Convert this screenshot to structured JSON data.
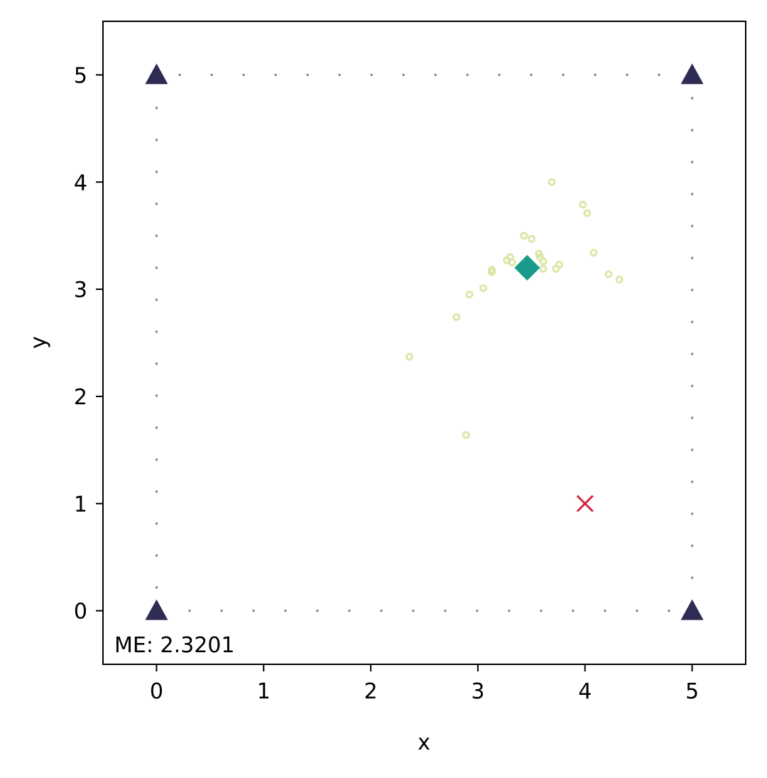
{
  "chart_data": {
    "type": "scatter",
    "xlabel": "x",
    "ylabel": "y",
    "xlim": [
      -0.5,
      5.5
    ],
    "ylim": [
      -0.5,
      5.5
    ],
    "x_ticks": [
      "0",
      "1",
      "2",
      "3",
      "4",
      "5"
    ],
    "y_ticks": [
      "0",
      "1",
      "2",
      "3",
      "4",
      "5"
    ],
    "grid": false,
    "annotation": "ME: 2.3201",
    "colors": {
      "anchor": "#2e2b55",
      "estimate": "#1a9a8a",
      "true_position": "#d4243e",
      "samples": "#d6e6a0",
      "boundary": "#808080"
    },
    "boundary": [
      [
        0,
        0
      ],
      [
        5,
        0
      ],
      [
        5,
        5
      ],
      [
        0,
        5
      ]
    ],
    "anchors": [
      {
        "x": 0,
        "y": 5
      },
      {
        "x": 5,
        "y": 5
      },
      {
        "x": 0,
        "y": 0
      },
      {
        "x": 5,
        "y": 0
      }
    ],
    "estimate": {
      "x": 3.46,
      "y": 3.2
    },
    "true_position": {
      "x": 4.0,
      "y": 1.0
    },
    "samples": [
      {
        "x": 3.69,
        "y": 4.0
      },
      {
        "x": 3.98,
        "y": 3.79
      },
      {
        "x": 4.02,
        "y": 3.71
      },
      {
        "x": 3.43,
        "y": 3.5
      },
      {
        "x": 3.5,
        "y": 3.47
      },
      {
        "x": 4.08,
        "y": 3.34
      },
      {
        "x": 3.57,
        "y": 3.33
      },
      {
        "x": 3.58,
        "y": 3.3
      },
      {
        "x": 3.3,
        "y": 3.3
      },
      {
        "x": 3.27,
        "y": 3.27
      },
      {
        "x": 3.32,
        "y": 3.25
      },
      {
        "x": 3.61,
        "y": 3.26
      },
      {
        "x": 3.76,
        "y": 3.23
      },
      {
        "x": 3.61,
        "y": 3.19
      },
      {
        "x": 3.73,
        "y": 3.19
      },
      {
        "x": 3.13,
        "y": 3.18
      },
      {
        "x": 3.13,
        "y": 3.16
      },
      {
        "x": 4.22,
        "y": 3.14
      },
      {
        "x": 4.32,
        "y": 3.09
      },
      {
        "x": 3.05,
        "y": 3.01
      },
      {
        "x": 2.92,
        "y": 2.95
      },
      {
        "x": 2.8,
        "y": 2.74
      },
      {
        "x": 2.36,
        "y": 2.37
      },
      {
        "x": 2.89,
        "y": 1.64
      }
    ]
  }
}
